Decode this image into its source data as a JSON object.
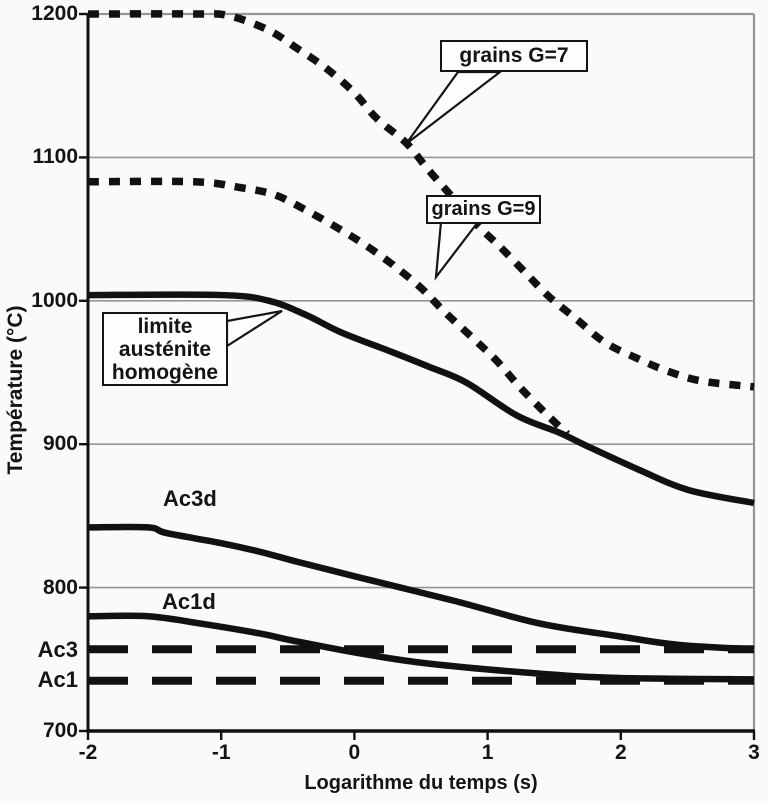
{
  "figure": {
    "background": "#fbfaf9",
    "ink": "#111111",
    "grid_color": "#8e979c"
  },
  "chart_data": {
    "type": "line",
    "title": "",
    "xlabel": "Logarithme du temps (s)",
    "ylabel": "Température (°C)",
    "xlim": [
      -2,
      3
    ],
    "ylim": [
      700,
      1200
    ],
    "xticks": [
      -2,
      -1,
      0,
      1,
      2,
      3
    ],
    "yticks": [
      1200,
      1100,
      1000,
      900,
      800,
      700
    ],
    "grid": "horizontal-only",
    "legend_position": "none (curves labelled by on-plot annotations)",
    "series": [
      {
        "name": "grains G=7",
        "style": "dashed-short",
        "points": [
          [
            -2,
            1200
          ],
          [
            -1.2,
            1200
          ],
          [
            -0.95,
            1199
          ],
          [
            -0.65,
            1189
          ],
          [
            -0.43,
            1176
          ],
          [
            -0.21,
            1162
          ],
          [
            0,
            1145
          ],
          [
            0.17,
            1127
          ],
          [
            0.39,
            1110
          ],
          [
            0.54,
            1093
          ],
          [
            0.71,
            1075
          ],
          [
            0.92,
            1053
          ],
          [
            1.09,
            1038
          ],
          [
            1.28,
            1020
          ],
          [
            1.46,
            1003
          ],
          [
            1.67,
            987
          ],
          [
            1.88,
            971
          ],
          [
            2.12,
            960
          ],
          [
            2.35,
            951
          ],
          [
            2.61,
            944
          ],
          [
            3,
            940
          ]
        ]
      },
      {
        "name": "grains G=9",
        "style": "dashed-short",
        "points": [
          [
            -2,
            1083
          ],
          [
            -1.2,
            1083
          ],
          [
            -0.86,
            1079
          ],
          [
            -0.6,
            1074
          ],
          [
            -0.36,
            1063
          ],
          [
            -0.13,
            1051
          ],
          [
            0.08,
            1039
          ],
          [
            0.29,
            1025
          ],
          [
            0.5,
            1009
          ],
          [
            0.68,
            992
          ],
          [
            0.89,
            974
          ],
          [
            1.07,
            958
          ],
          [
            1.24,
            940
          ],
          [
            1.43,
            922
          ],
          [
            1.6,
            907
          ]
        ]
      },
      {
        "name": "limite austénite homogène",
        "style": "solid",
        "points": [
          [
            -2,
            1004
          ],
          [
            -1,
            1004
          ],
          [
            -0.64,
            1000
          ],
          [
            -0.36,
            990
          ],
          [
            -0.1,
            978
          ],
          [
            0.29,
            964
          ],
          [
            0.56,
            954
          ],
          [
            0.84,
            943
          ],
          [
            1.22,
            920
          ],
          [
            1.54,
            908
          ],
          [
            1.74,
            899
          ],
          [
            2.14,
            882
          ],
          [
            2.51,
            868
          ],
          [
            3,
            859
          ]
        ]
      },
      {
        "name": "Ac3d",
        "style": "solid",
        "points": [
          [
            -2,
            842
          ],
          [
            -1.55,
            842
          ],
          [
            -1.41,
            838
          ],
          [
            -1,
            831
          ],
          [
            -0.71,
            825
          ],
          [
            -0.43,
            818
          ],
          [
            0.04,
            807
          ],
          [
            0.74,
            791
          ],
          [
            1.39,
            775
          ],
          [
            1.99,
            766
          ],
          [
            2.44,
            760
          ],
          [
            3,
            757
          ]
        ]
      },
      {
        "name": "Ac1d",
        "style": "solid",
        "points": [
          [
            -2,
            780
          ],
          [
            -1.55,
            780
          ],
          [
            -1.16,
            775
          ],
          [
            -0.71,
            768
          ],
          [
            -0.46,
            763
          ],
          [
            0.05,
            754
          ],
          [
            0.56,
            747
          ],
          [
            1.39,
            740
          ],
          [
            1.99,
            737
          ],
          [
            3,
            736
          ]
        ]
      },
      {
        "name": "Ac3",
        "style": "dashed-long",
        "points": [
          [
            -2,
            757
          ],
          [
            3,
            757
          ]
        ]
      },
      {
        "name": "Ac1",
        "style": "dashed-long",
        "points": [
          [
            -2,
            735
          ],
          [
            3,
            735
          ]
        ]
      }
    ]
  },
  "annotations": {
    "g7": "grains G=7",
    "g9": "grains G=9",
    "limite": "limite\nausténite\nhomogène",
    "ac3d": "Ac3d",
    "ac1d": "Ac1d",
    "ac3": "Ac3",
    "ac1": "Ac1"
  }
}
